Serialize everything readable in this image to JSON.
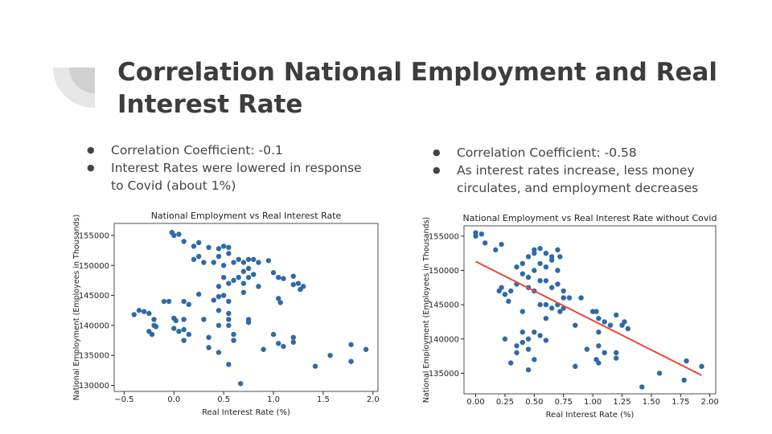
{
  "slide": {
    "title": "Correlation National Employment and Real Interest Rate",
    "left_bullets": [
      "Correlation Coefficient: -0.1",
      "Interest Rates were lowered in response to Covid (about 1%)"
    ],
    "right_bullets": [
      "Correlation Coefficient: -0.58",
      "As interest rates increase, less money circulates, and employment decreases"
    ]
  },
  "chart_data": [
    {
      "type": "scatter",
      "title": "National Employment vs Real Interest Rate",
      "x_label": "Real Interest Rate (%)",
      "y_label": "National Employment (Employees in Thousands)",
      "color": "#2e6aa8",
      "xlim": [
        -0.6,
        2.05
      ],
      "ylim": [
        129000,
        157000
      ],
      "xticks": [
        {
          "value": -0.5,
          "label": "−0.5"
        },
        {
          "value": 0,
          "label": "0.0"
        },
        0.5,
        {
          "value": 1,
          "label": "1.0"
        },
        1.5,
        {
          "value": 2,
          "label": "2.0"
        }
      ],
      "yticks": [
        130000,
        135000,
        140000,
        145000,
        150000,
        155000
      ],
      "x": [
        -0.02,
        0.05,
        0.0,
        0.1,
        0.2,
        0.25,
        0.35,
        0.45,
        0.5,
        0.55,
        0.55,
        0.45,
        0.2,
        0.25,
        0.3,
        0.4,
        0.5,
        0.6,
        0.65,
        0.7,
        0.75,
        0.8,
        0.75,
        0.7,
        0.85,
        0.95,
        0.65,
        0.6,
        0.7,
        0.75,
        0.8,
        0.5,
        0.55,
        0.45,
        1.0,
        1.05,
        1.1,
        1.2,
        1.25,
        1.3,
        1.27,
        1.2,
        1.05,
        1.07,
        0.85,
        0.7,
        0.5,
        0.55,
        0.4,
        0.45,
        0.45,
        0.55,
        0.25,
        0.1,
        0.15,
        -0.05,
        -0.1,
        -0.25,
        -0.35,
        -0.4,
        -0.3,
        -0.2,
        -0.2,
        -0.25,
        -0.22,
        -0.18,
        0.0,
        0.02,
        0.1,
        0.0,
        0.05,
        0.1,
        0.15,
        0.1,
        0.3,
        0.35,
        0.45,
        0.55,
        0.55,
        0.6,
        0.75,
        0.6,
        0.35,
        0.45,
        0.55,
        0.67,
        0.9,
        0.75,
        1.0,
        1.05,
        1.1,
        1.2,
        1.2,
        1.42,
        1.57,
        1.78,
        1.78,
        1.93
      ],
      "values": [
        155500,
        155200,
        155000,
        154000,
        153200,
        153800,
        153000,
        152800,
        153200,
        153000,
        152000,
        151500,
        151000,
        151500,
        150500,
        150500,
        150000,
        150500,
        151000,
        150500,
        151000,
        151000,
        149500,
        149000,
        150500,
        150800,
        148000,
        147500,
        147000,
        148000,
        148500,
        148000,
        147000,
        146500,
        148800,
        148000,
        147800,
        148200,
        147000,
        146500,
        146000,
        146800,
        144500,
        143800,
        146500,
        145500,
        145000,
        144000,
        144200,
        144800,
        142500,
        142000,
        145200,
        144000,
        143500,
        144000,
        144000,
        142000,
        142500,
        141800,
        142300,
        141000,
        140000,
        139000,
        138500,
        139800,
        141200,
        140800,
        141000,
        139500,
        139000,
        139300,
        138500,
        137500,
        141000,
        138000,
        140000,
        141000,
        140000,
        138500,
        140500,
        137500,
        136300,
        135500,
        133500,
        130300,
        136000,
        141000,
        138500,
        137000,
        136500,
        137200,
        138000,
        133200,
        135000,
        134000,
        136800,
        136000
      ]
    },
    {
      "type": "scatter",
      "title": "National Employment vs Real Interest Rate without Covid",
      "x_label": "Real Interest Rate (%)",
      "y_label": "National Employment (Employees in Thousands)",
      "color": "#2e6aa8",
      "xlim": [
        -0.1,
        2.05
      ],
      "ylim": [
        132000,
        156500
      ],
      "xticks": [
        {
          "value": 0,
          "label": "0.00"
        },
        {
          "value": 0.25,
          "label": "0.25"
        },
        {
          "value": 0.5,
          "label": "0.50"
        },
        {
          "value": 0.75,
          "label": "0.75"
        },
        {
          "value": 1,
          "label": "1.00"
        },
        {
          "value": 1.25,
          "label": "1.25"
        },
        {
          "value": 1.5,
          "label": "1.50"
        },
        {
          "value": 1.75,
          "label": "1.75"
        },
        {
          "value": 2,
          "label": "2.00"
        }
      ],
      "yticks": [
        135000,
        140000,
        145000,
        150000,
        155000
      ],
      "x": [
        0,
        0,
        0.05,
        0.08,
        0.17,
        0.22,
        0.2,
        0.25,
        0.3,
        0.28,
        0.22,
        0.35,
        0.35,
        0.4,
        0.45,
        0.5,
        0.5,
        0.55,
        0.6,
        0.65,
        0.7,
        0.72,
        0.55,
        0.6,
        0.65,
        0.7,
        0.5,
        0.45,
        0.4,
        0.45,
        0.5,
        0.55,
        0.6,
        0.65,
        0.7,
        0.75,
        0.75,
        0.8,
        0.55,
        0.6,
        0.65,
        0.7,
        0.72,
        0.75,
        0.4,
        0.6,
        0.85,
        0.9,
        1.0,
        1.03,
        1.05,
        1.1,
        1.15,
        1.2,
        1.25,
        1.3,
        1.27,
        1.05,
        0.25,
        0.35,
        0.4,
        0.4,
        0.45,
        0.5,
        0.55,
        0.6,
        0.35,
        0.45,
        0.5,
        0.3,
        0.45,
        0.85,
        0.95,
        1.03,
        1.05,
        1.05,
        1.1,
        1.2,
        1.2,
        1.42,
        1.57,
        1.78,
        1.8,
        1.93
      ],
      "values": [
        155500,
        155000,
        155300,
        154000,
        153000,
        153800,
        147000,
        146500,
        147000,
        145500,
        147500,
        148000,
        150500,
        151000,
        152000,
        152500,
        153000,
        153200,
        152500,
        152000,
        153000,
        152000,
        151000,
        150500,
        151500,
        150000,
        150000,
        149000,
        149500,
        147500,
        147000,
        148500,
        148500,
        147500,
        148000,
        147000,
        146000,
        146000,
        145000,
        145000,
        144500,
        145000,
        144000,
        144500,
        144000,
        143000,
        142000,
        146000,
        144000,
        144000,
        143000,
        142500,
        142000,
        143500,
        142000,
        141500,
        142500,
        141000,
        140000,
        139000,
        139500,
        141000,
        140000,
        141000,
        140500,
        139800,
        138000,
        138500,
        137000,
        136500,
        135500,
        136000,
        138500,
        137000,
        136500,
        139000,
        138000,
        138000,
        137200,
        133000,
        135000,
        134000,
        136800,
        136000
      ],
      "fit_line": {
        "x": [
          0,
          1.93
        ],
        "y": [
          151300,
          134700
        ],
        "color": "#e8483a"
      }
    }
  ]
}
